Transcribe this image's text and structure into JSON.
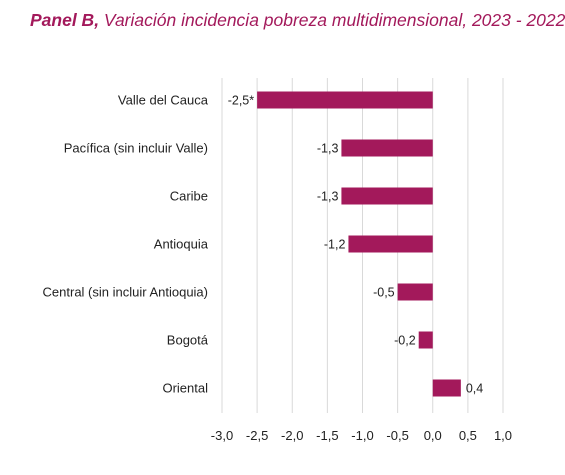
{
  "chart_data": {
    "type": "bar",
    "orientation": "horizontal",
    "title_bold": "Panel B,",
    "title_rest": " Variación incidencia pobreza multidimensional, 2023 - 2022",
    "categories": [
      "Valle del Cauca",
      "Pacífica (sin incluir Valle)",
      "Caribe",
      "Antioquia",
      "Central (sin incluir Antioquia)",
      "Bogotá",
      "Oriental"
    ],
    "values": [
      -2.5,
      -1.3,
      -1.3,
      -1.2,
      -0.5,
      -0.2,
      0.4
    ],
    "data_labels": [
      "-2,5*",
      "-1,3",
      "-1,3",
      "-1,2",
      "-0,5",
      "-0,2",
      "0,4"
    ],
    "xlim": [
      -3.0,
      1.0
    ],
    "xticks": [
      -3.0,
      -2.5,
      -2.0,
      -1.5,
      -1.0,
      -0.5,
      0.0,
      0.5,
      1.0
    ],
    "xtick_labels": [
      "-3,0",
      "-2,5",
      "-2,0",
      "-1,5",
      "-1,0",
      "-0,5",
      "0,0",
      "0,5",
      "1,0"
    ],
    "grid": true,
    "bar_color": "#a3195b",
    "grid_color": "#d9d9d9",
    "title_color": "#a3195b"
  }
}
